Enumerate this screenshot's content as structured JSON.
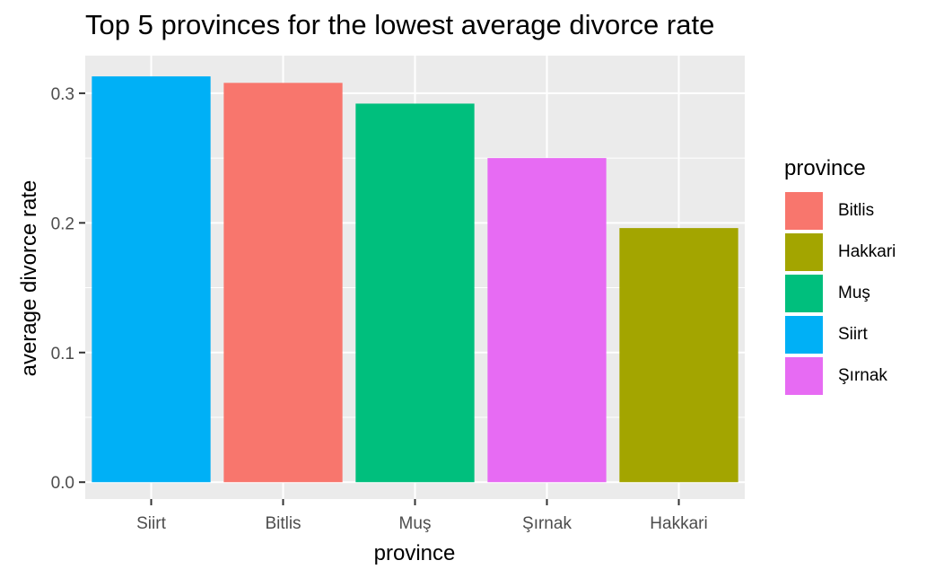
{
  "chart_data": {
    "type": "bar",
    "title": "Top 5 provinces for the lowest average divorce rate",
    "xlabel": "province",
    "ylabel": "average divorce rate",
    "categories": [
      "Siirt",
      "Bitlis",
      "Muş",
      "Şırnak",
      "Hakkari"
    ],
    "values": [
      0.313,
      0.308,
      0.292,
      0.25,
      0.196
    ],
    "ylim": [
      -0.013,
      0.329
    ],
    "yticks": [
      "0.0",
      "0.1",
      "0.2",
      "0.3"
    ],
    "legend": {
      "title": "province",
      "entries": [
        {
          "label": "Bitlis",
          "color": "#F8766D"
        },
        {
          "label": "Hakkari",
          "color": "#A3A500"
        },
        {
          "label": "Muş",
          "color": "#00BF7D"
        },
        {
          "label": "Siirt",
          "color": "#00B0F6"
        },
        {
          "label": "Şırnak",
          "color": "#E76BF3"
        }
      ]
    },
    "colors": {
      "Siirt": "#00B0F6",
      "Bitlis": "#F8766D",
      "Muş": "#00BF7D",
      "Şırnak": "#E76BF3",
      "Hakkari": "#A3A500"
    },
    "panel_background": "#EBEBEB",
    "grid": true,
    "legend_position": "right"
  }
}
